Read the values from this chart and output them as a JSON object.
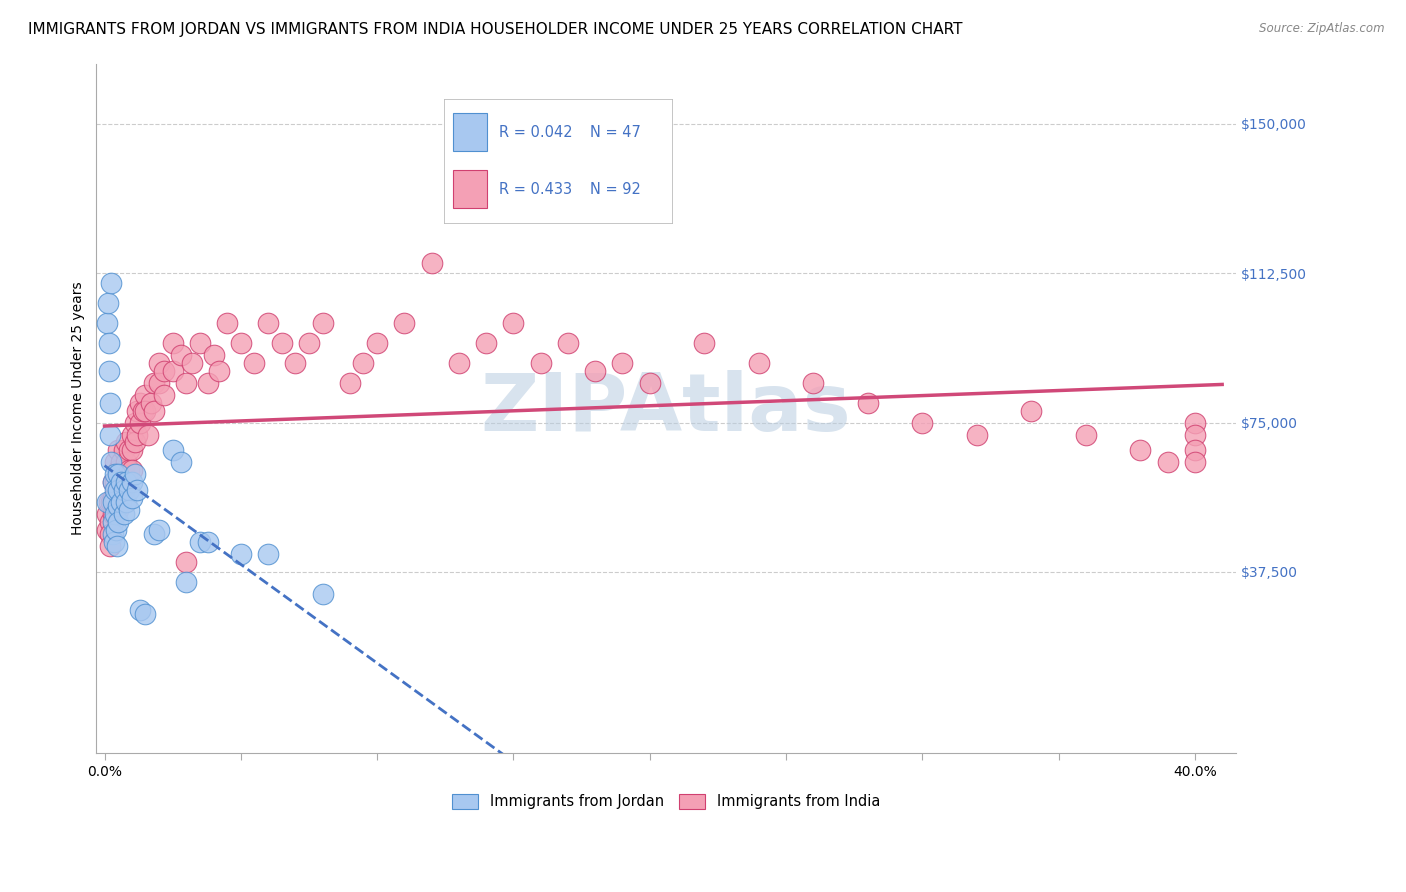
{
  "title": "IMMIGRANTS FROM JORDAN VS IMMIGRANTS FROM INDIA HOUSEHOLDER INCOME UNDER 25 YEARS CORRELATION CHART",
  "source": "Source: ZipAtlas.com",
  "ylabel": "Householder Income Under 25 years",
  "ytick_values": [
    0,
    37500,
    75000,
    112500,
    150000
  ],
  "ytick_labels": [
    "",
    "$37,500",
    "$75,000",
    "$112,500",
    "$150,000"
  ],
  "xtick_values": [
    0.0,
    0.05,
    0.1,
    0.15,
    0.2,
    0.25,
    0.3,
    0.35,
    0.4
  ],
  "xtick_show": [
    0.0,
    0.4
  ],
  "xlim": [
    -0.003,
    0.415
  ],
  "ylim": [
    -8000,
    165000
  ],
  "jordan_R": 0.042,
  "jordan_N": 47,
  "india_R": 0.433,
  "india_N": 92,
  "jordan_color": "#a8c8f0",
  "india_color": "#f4a0b5",
  "jordan_edge_color": "#5090d0",
  "india_edge_color": "#d04070",
  "jordan_line_color": "#4472c4",
  "india_line_color": "#d04878",
  "background_color": "#ffffff",
  "grid_color": "#cccccc",
  "right_tick_color": "#4472c4",
  "title_fontsize": 11,
  "axis_label_fontsize": 10,
  "tick_fontsize": 10,
  "watermark_text": "ZIPAtlas",
  "watermark_color": "#b8cce0",
  "watermark_alpha": 0.55,
  "jordan_x": [
    0.0008,
    0.001,
    0.0012,
    0.0015,
    0.0018,
    0.002,
    0.002,
    0.0022,
    0.0025,
    0.003,
    0.003,
    0.003,
    0.0032,
    0.0035,
    0.004,
    0.004,
    0.004,
    0.0042,
    0.0045,
    0.005,
    0.005,
    0.005,
    0.005,
    0.006,
    0.006,
    0.007,
    0.007,
    0.008,
    0.008,
    0.009,
    0.009,
    0.01,
    0.01,
    0.011,
    0.012,
    0.013,
    0.015,
    0.018,
    0.02,
    0.025,
    0.028,
    0.03,
    0.035,
    0.038,
    0.05,
    0.06,
    0.08
  ],
  "jordan_y": [
    55000,
    100000,
    105000,
    95000,
    88000,
    80000,
    72000,
    65000,
    110000,
    60000,
    55000,
    50000,
    47000,
    45000,
    62000,
    58000,
    52000,
    48000,
    44000,
    62000,
    58000,
    54000,
    50000,
    60000,
    55000,
    58000,
    52000,
    60000,
    55000,
    58000,
    53000,
    60000,
    56000,
    62000,
    58000,
    28000,
    27000,
    47000,
    48000,
    68000,
    65000,
    35000,
    45000,
    45000,
    42000,
    42000,
    32000
  ],
  "india_x": [
    0.001,
    0.001,
    0.0015,
    0.002,
    0.002,
    0.002,
    0.0025,
    0.003,
    0.003,
    0.003,
    0.004,
    0.004,
    0.004,
    0.004,
    0.005,
    0.005,
    0.005,
    0.005,
    0.006,
    0.006,
    0.007,
    0.007,
    0.007,
    0.008,
    0.008,
    0.009,
    0.009,
    0.01,
    0.01,
    0.01,
    0.011,
    0.011,
    0.012,
    0.012,
    0.013,
    0.013,
    0.014,
    0.015,
    0.015,
    0.016,
    0.017,
    0.018,
    0.018,
    0.02,
    0.02,
    0.022,
    0.022,
    0.025,
    0.025,
    0.028,
    0.03,
    0.03,
    0.032,
    0.035,
    0.038,
    0.04,
    0.042,
    0.045,
    0.05,
    0.055,
    0.06,
    0.065,
    0.07,
    0.075,
    0.08,
    0.09,
    0.095,
    0.1,
    0.11,
    0.12,
    0.13,
    0.14,
    0.15,
    0.16,
    0.17,
    0.18,
    0.19,
    0.2,
    0.22,
    0.24,
    0.26,
    0.28,
    0.3,
    0.32,
    0.34,
    0.36,
    0.38,
    0.39,
    0.4,
    0.4,
    0.4,
    0.4
  ],
  "india_y": [
    52000,
    48000,
    55000,
    50000,
    47000,
    44000,
    55000,
    60000,
    56000,
    52000,
    65000,
    60000,
    56000,
    52000,
    68000,
    63000,
    58000,
    53000,
    65000,
    60000,
    68000,
    63000,
    58000,
    70000,
    65000,
    68000,
    63000,
    72000,
    68000,
    63000,
    75000,
    70000,
    78000,
    72000,
    80000,
    75000,
    78000,
    82000,
    78000,
    72000,
    80000,
    85000,
    78000,
    90000,
    85000,
    88000,
    82000,
    95000,
    88000,
    92000,
    40000,
    85000,
    90000,
    95000,
    85000,
    92000,
    88000,
    100000,
    95000,
    90000,
    100000,
    95000,
    90000,
    95000,
    100000,
    85000,
    90000,
    95000,
    100000,
    115000,
    90000,
    95000,
    100000,
    90000,
    95000,
    88000,
    90000,
    85000,
    95000,
    90000,
    85000,
    80000,
    75000,
    72000,
    78000,
    72000,
    68000,
    65000,
    75000,
    72000,
    68000,
    65000
  ]
}
